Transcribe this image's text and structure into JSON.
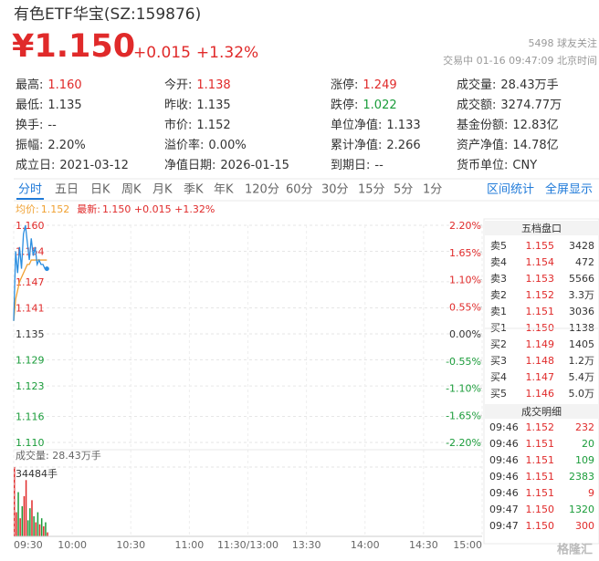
{
  "header": {
    "title": "有色ETF华宝(SZ:159876)",
    "price": "¥1.150",
    "change": "+0.015",
    "change_pct": "+1.32%",
    "followers": "5498 球友关注",
    "status": "交易中 01-16 09:47:09 北京时间"
  },
  "stats": [
    [
      {
        "label": "最高:",
        "value": "1.160",
        "color": "#e02a2a"
      },
      {
        "label": "今开:",
        "value": "1.138",
        "color": "#e02a2a"
      },
      {
        "label": "涨停:",
        "value": "1.249",
        "color": "#e02a2a"
      },
      {
        "label": "成交量:",
        "value": "28.43万手"
      }
    ],
    [
      {
        "label": "最低:",
        "value": "1.135"
      },
      {
        "label": "昨收:",
        "value": "1.135"
      },
      {
        "label": "跌停:",
        "value": "1.022",
        "color": "#1a9c3a"
      },
      {
        "label": "成交额:",
        "value": "3274.77万"
      }
    ],
    [
      {
        "label": "换手:",
        "value": "--"
      },
      {
        "label": "市价:",
        "value": "1.152"
      },
      {
        "label": "单位净值:",
        "value": "1.133"
      },
      {
        "label": "基金份额:",
        "value": "12.83亿"
      }
    ],
    [
      {
        "label": "振幅:",
        "value": "2.20%"
      },
      {
        "label": "溢价率:",
        "value": "0.00%"
      },
      {
        "label": "累计净值:",
        "value": "2.266"
      },
      {
        "label": "资产净值:",
        "value": "14.78亿"
      }
    ],
    [
      {
        "label": "成立日:",
        "value": "2021-03-12"
      },
      {
        "label": "净值日期:",
        "value": "2026-01-15"
      },
      {
        "label": "到期日:",
        "value": "--"
      },
      {
        "label": "货币单位:",
        "value": "CNY"
      }
    ]
  ],
  "tabs": [
    "分时",
    "五日",
    "日K",
    "周K",
    "月K",
    "季K",
    "年K",
    "120分",
    "60分",
    "30分",
    "15分",
    "5分",
    "1分"
  ],
  "tab_links": [
    "区间统计",
    "全屏显示"
  ],
  "chart_data": [
    {
      "type": "line",
      "x": [
        0,
        1,
        2,
        3,
        4,
        5,
        6,
        7,
        8,
        9,
        10,
        11,
        12,
        13,
        14,
        15,
        16,
        17
      ],
      "xlim": [
        0,
        240
      ],
      "series": [
        {
          "name": "均价:",
          "legend_value": "1.152",
          "color": "#f0a030",
          "values": [
            1.138,
            1.143,
            1.145,
            1.147,
            1.148,
            1.149,
            1.15,
            1.151,
            1.151,
            1.152,
            1.152,
            1.152,
            1.152,
            1.152,
            1.152,
            1.152,
            1.152,
            1.152
          ]
        },
        {
          "name": "最新:",
          "legend_value": "1.150 +0.015 +1.32%",
          "color": "#2a8ee0",
          "values": [
            1.138,
            1.154,
            1.149,
            1.155,
            1.15,
            1.158,
            1.16,
            1.156,
            1.152,
            1.157,
            1.153,
            1.155,
            1.151,
            1.152,
            1.151,
            1.151,
            1.15,
            1.15
          ]
        }
      ],
      "ylim": [
        1.11,
        1.16
      ],
      "yticks": [
        {
          "value": 1.16,
          "label": "1.160"
        },
        {
          "value": 1.154,
          "label": "1.154"
        },
        {
          "value": 1.147,
          "label": "1.147"
        },
        {
          "value": 1.141,
          "label": "1.141"
        },
        {
          "value": 1.135,
          "label": "1.135"
        },
        {
          "value": 1.129,
          "label": "1.129"
        },
        {
          "value": 1.123,
          "label": "1.123"
        },
        {
          "value": 1.116,
          "label": "1.116"
        },
        {
          "value": 1.11,
          "label": "1.110"
        }
      ],
      "y2lim": [
        -2.2,
        2.2
      ],
      "y2ticks": [
        {
          "value": 2.2,
          "label": "2.20%"
        },
        {
          "value": 1.65,
          "label": "1.65%"
        },
        {
          "value": 1.1,
          "label": "1.10%"
        },
        {
          "value": 0.55,
          "label": "0.55%"
        },
        {
          "value": 0,
          "label": "0.00%"
        },
        {
          "value": -0.55,
          "label": "-0.55%"
        },
        {
          "value": -1.1,
          "label": "-1.10%"
        },
        {
          "value": -1.65,
          "label": "-1.65%"
        },
        {
          "value": -2.2,
          "label": "-2.20%"
        }
      ],
      "grid": true
    },
    {
      "type": "bar",
      "title": "成交量: 28.43万手",
      "x": [
        0,
        1,
        2,
        3,
        4,
        5,
        6,
        7,
        8,
        9,
        10,
        11,
        12,
        13,
        14,
        15,
        16,
        17
      ],
      "xlim": [
        0,
        240
      ],
      "values": [
        34484,
        12000,
        22000,
        9000,
        15000,
        20000,
        28000,
        8000,
        14000,
        18000,
        10000,
        7000,
        12000,
        6000,
        9000,
        5000,
        7000,
        2000
      ],
      "ylim": [
        0,
        34484
      ],
      "yticks": [
        {
          "value": 34484,
          "label": "34484手"
        }
      ],
      "xticks": [
        {
          "value": 0,
          "label": "09:30"
        },
        {
          "value": 30,
          "label": "10:00"
        },
        {
          "value": 60,
          "label": "10:30"
        },
        {
          "value": 90,
          "label": "11:00"
        },
        {
          "value": 120,
          "label": "11:30/13:00"
        },
        {
          "value": 150,
          "label": "13:30"
        },
        {
          "value": 180,
          "label": "14:00"
        },
        {
          "value": 210,
          "label": "14:30"
        },
        {
          "value": 240,
          "label": "15:00"
        }
      ]
    }
  ],
  "order_book": {
    "title": "五档盘口",
    "rows": [
      [
        "卖5",
        "1.155",
        "3428"
      ],
      [
        "卖4",
        "1.154",
        "472"
      ],
      [
        "卖3",
        "1.153",
        "5566"
      ],
      [
        "卖2",
        "1.152",
        "3.3万"
      ],
      [
        "卖1",
        "1.151",
        "3036"
      ],
      [
        "买1",
        "1.150",
        "1138"
      ],
      [
        "买2",
        "1.149",
        "1405"
      ],
      [
        "买3",
        "1.148",
        "1.2万"
      ],
      [
        "买4",
        "1.147",
        "5.4万"
      ],
      [
        "买5",
        "1.146",
        "5.0万"
      ]
    ]
  },
  "trades": {
    "title": "成交明细",
    "rows": [
      {
        "time": "09:46",
        "price": "1.152",
        "volume": "232",
        "color": "#e02a2a"
      },
      {
        "time": "09:46",
        "price": "1.151",
        "volume": "20",
        "color": "#1a9c3a"
      },
      {
        "time": "09:46",
        "price": "1.151",
        "volume": "109",
        "color": "#1a9c3a"
      },
      {
        "time": "09:46",
        "price": "1.151",
        "volume": "2383",
        "color": "#1a9c3a"
      },
      {
        "time": "09:46",
        "price": "1.151",
        "volume": "9",
        "color": "#e02a2a"
      },
      {
        "time": "09:47",
        "price": "1.150",
        "volume": "1320",
        "color": "#1a9c3a"
      },
      {
        "time": "09:47",
        "price": "1.150",
        "volume": "300",
        "color": "#e02a2a"
      }
    ]
  },
  "watermark": "格隆汇"
}
